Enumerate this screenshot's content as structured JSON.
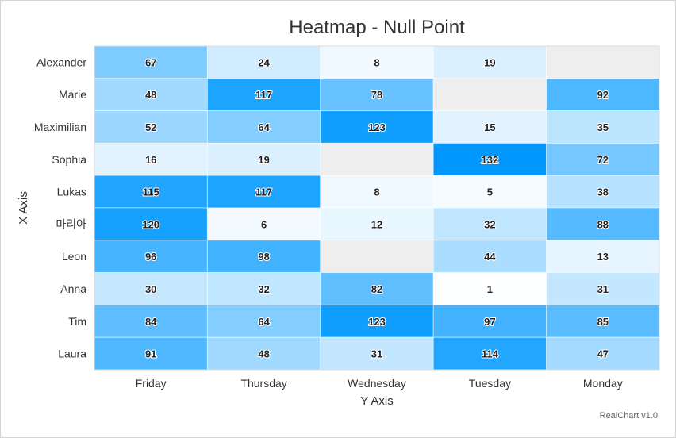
{
  "chart_data": {
    "type": "heatmap",
    "title": "Heatmap - Null Point",
    "xlabel": "Y Axis",
    "ylabel": "X Axis",
    "columns": [
      "Friday",
      "Thursday",
      "Wednesday",
      "Tuesday",
      "Monday"
    ],
    "rows": [
      "Alexander",
      "Marie",
      "Maximilian",
      "Sophia",
      "Lukas",
      "마리아",
      "Leon",
      "Anna",
      "Tim",
      "Laura"
    ],
    "values": [
      [
        67,
        24,
        8,
        19,
        null
      ],
      [
        48,
        117,
        78,
        null,
        92
      ],
      [
        52,
        64,
        123,
        15,
        35
      ],
      [
        16,
        19,
        null,
        132,
        72
      ],
      [
        115,
        117,
        8,
        5,
        38
      ],
      [
        120,
        6,
        12,
        32,
        88
      ],
      [
        96,
        98,
        null,
        44,
        13
      ],
      [
        30,
        32,
        82,
        1,
        31
      ],
      [
        84,
        64,
        123,
        97,
        85
      ],
      [
        91,
        48,
        31,
        114,
        47
      ]
    ],
    "value_range": [
      0,
      132
    ],
    "color_min": "#ffffff",
    "color_max": "#0098ff",
    "null_color": "#eeeeee",
    "grid": true,
    "legend": "none"
  },
  "credit": "RealChart v1.0"
}
